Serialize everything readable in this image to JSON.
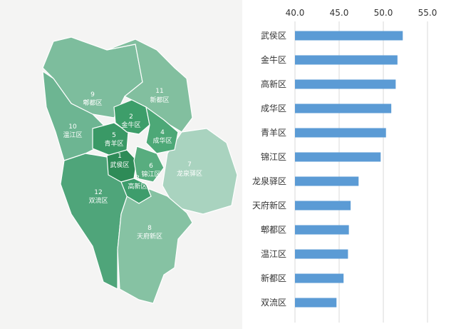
{
  "map": {
    "districts": [
      {
        "num": "1",
        "name": "武侯区",
        "color": "#2e8b57"
      },
      {
        "num": "2",
        "name": "金牛区",
        "color": "#3d9e6a"
      },
      {
        "num": "3",
        "name": "高新区",
        "color": "#3e9d6c"
      },
      {
        "num": "4",
        "name": "成华区",
        "color": "#4da877"
      },
      {
        "num": "5",
        "name": "青羊区",
        "color": "#3a9966"
      },
      {
        "num": "6",
        "name": "锦江区",
        "color": "#58ad7f"
      },
      {
        "num": "7",
        "name": "龙泉驿区",
        "color": "#a9d3bf"
      },
      {
        "num": "8",
        "name": "天府新区",
        "color": "#86c2a3"
      },
      {
        "num": "9",
        "name": "郫都区",
        "color": "#7dbd9d"
      },
      {
        "num": "10",
        "name": "温江区",
        "color": "#6db592"
      },
      {
        "num": "11",
        "name": "新都区",
        "color": "#82bf9f"
      },
      {
        "num": "12",
        "name": "双流区",
        "color": "#4fa57a"
      }
    ]
  },
  "chart_data": {
    "type": "bar",
    "orientation": "horizontal",
    "categories": [
      "武侯区",
      "金牛区",
      "高新区",
      "成华区",
      "青羊区",
      "锦江区",
      "龙泉驿区",
      "天府新区",
      "郫都区",
      "温江区",
      "新都区",
      "双流区"
    ],
    "values": [
      52.2,
      51.6,
      51.4,
      50.9,
      50.3,
      49.7,
      47.2,
      46.3,
      46.1,
      46.0,
      45.5,
      44.7
    ],
    "xlim": [
      40,
      55
    ],
    "ticks": [
      "40.0",
      "45.0",
      "50.0",
      "55.0"
    ],
    "tick_values": [
      40,
      45,
      50,
      55
    ],
    "bar_color": "#5b9bd5",
    "grid": true
  }
}
